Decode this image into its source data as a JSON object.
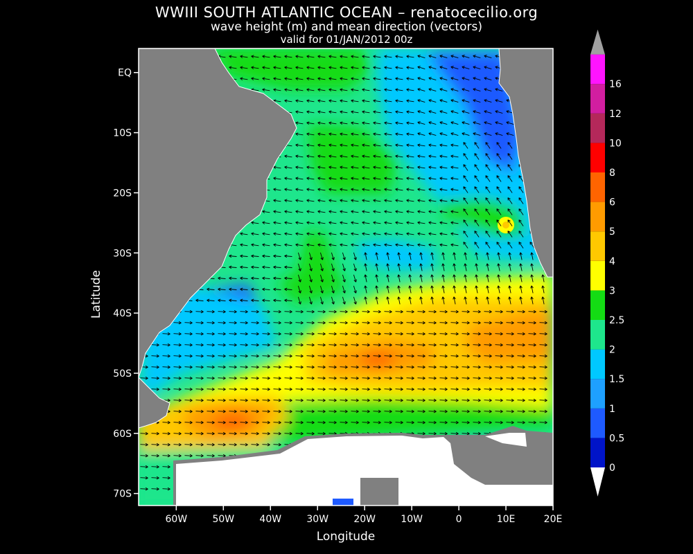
{
  "title": "WWIII SOUTH ATLANTIC OCEAN – renatocecilio.org",
  "subtitle": "wave height (m) and mean direction (vectors)",
  "valid_line": "valid for 01/JAN/2012 00z",
  "axes": {
    "xlabel": "Longitude",
    "ylabel": "Latitude",
    "x_ticks": [
      {
        "label": "60W",
        "lon": -60
      },
      {
        "label": "50W",
        "lon": -50
      },
      {
        "label": "40W",
        "lon": -40
      },
      {
        "label": "30W",
        "lon": -30
      },
      {
        "label": "20W",
        "lon": -20
      },
      {
        "label": "10W",
        "lon": -10
      },
      {
        "label": "0",
        "lon": 0
      },
      {
        "label": "10E",
        "lon": 10
      },
      {
        "label": "20E",
        "lon": 20
      }
    ],
    "y_ticks": [
      {
        "label": "EQ",
        "lat": 0
      },
      {
        "label": "10S",
        "lat": -10
      },
      {
        "label": "20S",
        "lat": -20
      },
      {
        "label": "30S",
        "lat": -30
      },
      {
        "label": "40S",
        "lat": -40
      },
      {
        "label": "50S",
        "lat": -50
      },
      {
        "label": "60S",
        "lat": -60
      },
      {
        "label": "70S",
        "lat": -70
      }
    ]
  },
  "colorbar": {
    "labels": [
      "0",
      "0.5",
      "1",
      "1.5",
      "2",
      "2.5",
      "3",
      "4",
      "5",
      "6",
      "8",
      "10",
      "12",
      "16"
    ],
    "colors": [
      "#0014c8",
      "#1e5aff",
      "#1ea0ff",
      "#00c8ff",
      "#1ee68c",
      "#14dc14",
      "#ffff00",
      "#ffc800",
      "#ff9b00",
      "#ff6400",
      "#ff0000",
      "#b4285a",
      "#d21ea0",
      "#ff14ff"
    ]
  },
  "colors": {
    "land": "#808080",
    "ice": "#ffffff",
    "background": "#000000"
  }
}
